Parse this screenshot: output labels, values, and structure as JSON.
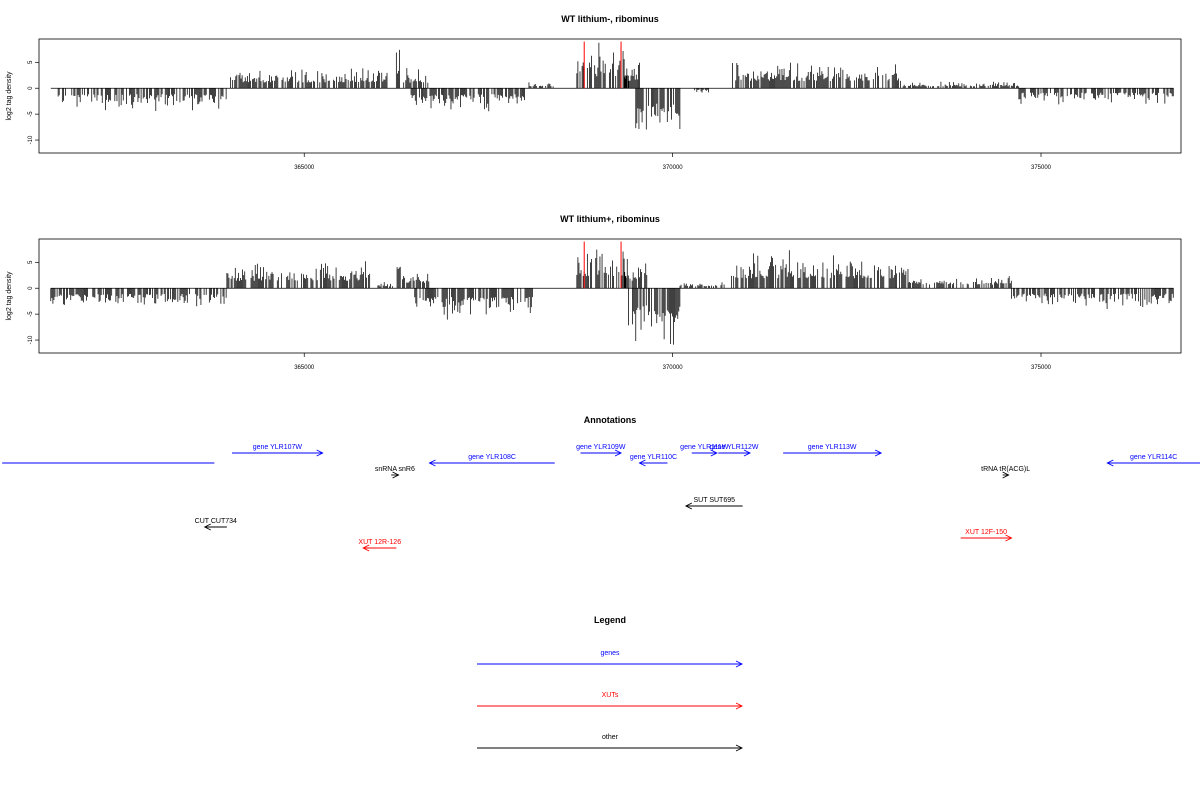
{
  "chart_data": [
    {
      "type": "bar",
      "title": "WT lithium-, ribominus",
      "ylabel": "log2 tag density",
      "ylim": [
        -12.5,
        9.5
      ],
      "xlim": [
        361400,
        376900
      ],
      "y_ticks": [
        -10,
        -5,
        0,
        5
      ],
      "x_ticks": [
        365000,
        370000,
        375000
      ],
      "grid": false,
      "highlight": {
        "color": "#ff0000",
        "x": [
          368800,
          369300
        ],
        "height": 9
      },
      "profile": [
        {
          "x": [
            361560,
            363950
          ],
          "y": -3.3,
          "dir": -1
        },
        {
          "x": [
            364000,
            366150
          ],
          "y": 3.2,
          "dir": 1
        },
        {
          "x": [
            366250,
            366300
          ],
          "y": 7.5,
          "dir": 1
        },
        {
          "x": [
            366350,
            366700
          ],
          "y": 3.0,
          "dir": 1
        },
        {
          "x": [
            366450,
            368000
          ],
          "y": -3.3,
          "dir": -1
        },
        {
          "x": [
            368050,
            368400
          ],
          "y": 1.0,
          "dir": 1
        },
        {
          "x": [
            368700,
            369400
          ],
          "y": 6.5,
          "dir": 1
        },
        {
          "x": [
            369350,
            369550
          ],
          "y": 4.0,
          "dir": 1
        },
        {
          "x": [
            369500,
            370100
          ],
          "y": -8.5,
          "dir": -1
        },
        {
          "x": [
            370300,
            370500
          ],
          "y": -0.8,
          "dir": -1
        },
        {
          "x": [
            370800,
            373100
          ],
          "y": 4.0,
          "dir": 1
        },
        {
          "x": [
            373100,
            374700
          ],
          "y": 1.0,
          "dir": 1
        },
        {
          "x": [
            374700,
            376800
          ],
          "y": -2.4,
          "dir": -1
        }
      ]
    },
    {
      "type": "bar",
      "title": "WT lithium+, ribominus",
      "ylabel": "log2 tag density",
      "ylim": [
        -12.5,
        9.5
      ],
      "xlim": [
        361400,
        376900
      ],
      "y_ticks": [
        -10,
        -5,
        0,
        5
      ],
      "x_ticks": [
        365000,
        370000,
        375000
      ],
      "grid": false,
      "highlight": {
        "color": "#ff0000",
        "x": [
          368800,
          369300
        ],
        "height": 9
      },
      "profile": [
        {
          "x": [
            361560,
            363950
          ],
          "y": -3.2,
          "dir": -1
        },
        {
          "x": [
            363950,
            365900
          ],
          "y": 4.0,
          "dir": 1
        },
        {
          "x": [
            366000,
            366200
          ],
          "y": 1.0,
          "dir": 1
        },
        {
          "x": [
            366260,
            366310
          ],
          "y": 8.5,
          "dir": 1
        },
        {
          "x": [
            366320,
            366700
          ],
          "y": 3.0,
          "dir": 1
        },
        {
          "x": [
            366500,
            368100
          ],
          "y": -4.8,
          "dir": -1
        },
        {
          "x": [
            368700,
            369400
          ],
          "y": 6.5,
          "dir": 1
        },
        {
          "x": [
            369350,
            369650
          ],
          "y": 4.0,
          "dir": 1
        },
        {
          "x": [
            369400,
            370100
          ],
          "y": -9.5,
          "dir": -1
        },
        {
          "x": [
            370100,
            370700
          ],
          "y": 1.0,
          "dir": 1
        },
        {
          "x": [
            370800,
            373200
          ],
          "y": 5.5,
          "dir": 1
        },
        {
          "x": [
            373200,
            374600
          ],
          "y": 2.0,
          "dir": 1
        },
        {
          "x": [
            374600,
            376800
          ],
          "y": -3.0,
          "dir": -1
        }
      ]
    }
  ],
  "annotations": {
    "title": "Annotations",
    "xlim": [
      361400,
      376900
    ],
    "colors": {
      "genes": "#0000ff",
      "XUTs": "#ff0000",
      "other": "#000000"
    },
    "features": [
      {
        "label": "",
        "kind": "genes",
        "start": 360900,
        "end": 363780,
        "strand": "+",
        "row": 463
      },
      {
        "label": "gene YLR107W",
        "kind": "genes",
        "start": 364020,
        "end": 365250,
        "strand": "+",
        "row": 453
      },
      {
        "label": "gene YLR108C",
        "kind": "genes",
        "start": 366700,
        "end": 368400,
        "strand": "-",
        "row": 463
      },
      {
        "label": "gene YLR109W",
        "kind": "genes",
        "start": 368750,
        "end": 369300,
        "strand": "+",
        "row": 453
      },
      {
        "label": "gene YLR110C",
        "kind": "genes",
        "start": 369550,
        "end": 369930,
        "strand": "-",
        "row": 463
      },
      {
        "label": "gene YLR111W",
        "kind": "genes",
        "start": 370260,
        "end": 370600,
        "strand": "+",
        "row": 453
      },
      {
        "label": "gene YLR112W",
        "kind": "genes",
        "start": 370620,
        "end": 371050,
        "strand": "+",
        "row": 453
      },
      {
        "label": "gene YLR113W",
        "kind": "genes",
        "start": 371500,
        "end": 372830,
        "strand": "+",
        "row": 453
      },
      {
        "label": "gene YLR114C",
        "kind": "genes",
        "start": 375900,
        "end": 377300,
        "strand": "-",
        "row": 463
      },
      {
        "label": "snRNA snR6",
        "kind": "other",
        "start": 366180,
        "end": 366280,
        "strand": "+",
        "row": 475
      },
      {
        "label": "tRNA tR(ACG)L",
        "kind": "other",
        "start": 374480,
        "end": 374560,
        "strand": "+",
        "row": 475
      },
      {
        "label": "SUT SUT695",
        "kind": "other",
        "start": 370180,
        "end": 370950,
        "strand": "-",
        "row": 506
      },
      {
        "label": "CUT CUT734",
        "kind": "other",
        "start": 363650,
        "end": 363950,
        "strand": "-",
        "row": 527
      },
      {
        "label": "XUT 12F-150",
        "kind": "XUTs",
        "start": 373910,
        "end": 374600,
        "strand": "+",
        "row": 538
      },
      {
        "label": "XUT 12R-126",
        "kind": "XUTs",
        "start": 365800,
        "end": 366250,
        "strand": "-",
        "row": 548
      }
    ]
  },
  "legend": {
    "title": "Legend",
    "items": [
      {
        "label": "genes",
        "color": "#0000ff"
      },
      {
        "label": "XUTs",
        "color": "#ff0000"
      },
      {
        "label": "other",
        "color": "#000000"
      }
    ]
  }
}
